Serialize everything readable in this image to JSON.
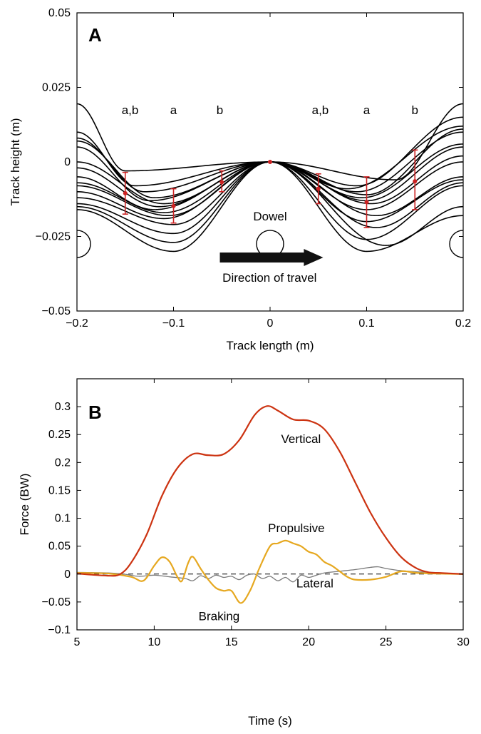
{
  "chart_data": [
    {
      "panel": "A",
      "type": "line",
      "xlabel": "Track length (m)",
      "ylabel": "Track height (m)",
      "xlim": [
        -0.2,
        0.2
      ],
      "ylim": [
        -0.05,
        0.05
      ],
      "xticks": [
        -0.2,
        -0.1,
        0,
        0.1,
        0.2
      ],
      "xtick_labels": [
        "−0.2",
        "−0.1",
        "0",
        "0.1",
        "0.2"
      ],
      "yticks": [
        -0.05,
        -0.025,
        0,
        0.025,
        0.05
      ],
      "ytick_labels": [
        "−0.05",
        "−0.025",
        "0",
        "0.025",
        "0.05"
      ],
      "grid": false,
      "line_color": "#000000",
      "marker_color": "#cc2222",
      "track_profiles": [
        {
          "left_end": 0.0195,
          "min_left_x": -0.15,
          "min_left_y": -0.003,
          "min_right_x": 0.13,
          "min_right_y": -0.006,
          "right_end": 0.0195
        },
        {
          "left_end": 0.01,
          "min_left_x": -0.14,
          "min_left_y": -0.008,
          "min_right_x": 0.09,
          "min_right_y": -0.008,
          "right_end": 0.015
        },
        {
          "left_end": 0.008,
          "min_left_x": -0.13,
          "min_left_y": -0.01,
          "min_right_x": 0.08,
          "min_right_y": -0.009,
          "right_end": 0.012
        },
        {
          "left_end": 0.007,
          "min_left_x": -0.12,
          "min_left_y": -0.012,
          "min_right_x": 0.09,
          "min_right_y": -0.01,
          "right_end": 0.01
        },
        {
          "left_end": 0.005,
          "min_left_x": -0.125,
          "min_left_y": -0.013,
          "min_right_x": 0.1,
          "min_right_y": -0.011,
          "right_end": 0.011
        },
        {
          "left_end": 0.0,
          "min_left_x": -0.11,
          "min_left_y": -0.014,
          "min_right_x": 0.095,
          "min_right_y": -0.012,
          "right_end": 0.006
        },
        {
          "left_end": -0.002,
          "min_left_x": -0.115,
          "min_left_y": -0.015,
          "min_right_x": 0.1,
          "min_right_y": -0.013,
          "right_end": 0.005
        },
        {
          "left_end": -0.005,
          "min_left_x": -0.12,
          "min_left_y": -0.016,
          "min_right_x": 0.105,
          "min_right_y": -0.014,
          "right_end": 0.002
        },
        {
          "left_end": -0.007,
          "min_left_x": -0.11,
          "min_left_y": -0.017,
          "min_right_x": 0.1,
          "min_right_y": -0.016,
          "right_end": 0.0
        },
        {
          "left_end": -0.008,
          "min_left_x": -0.105,
          "min_left_y": -0.018,
          "min_right_x": 0.11,
          "min_right_y": -0.018,
          "right_end": -0.005
        },
        {
          "left_end": -0.01,
          "min_left_x": -0.11,
          "min_left_y": -0.019,
          "min_right_x": 0.1,
          "min_right_y": -0.02,
          "right_end": -0.006
        },
        {
          "left_end": -0.012,
          "min_left_x": -0.1,
          "min_left_y": -0.021,
          "min_right_x": 0.11,
          "min_right_y": -0.022,
          "right_end": -0.007
        },
        {
          "left_end": -0.014,
          "min_left_x": -0.1,
          "min_left_y": -0.024,
          "min_right_x": 0.1,
          "min_right_y": -0.026,
          "right_end": -0.008
        },
        {
          "left_end": -0.015,
          "min_left_x": -0.1,
          "min_left_y": -0.027,
          "min_right_x": 0.12,
          "min_right_y": -0.028,
          "right_end": -0.015
        },
        {
          "left_end": -0.016,
          "min_left_x": -0.1,
          "min_left_y": -0.03,
          "min_right_x": 0.1,
          "min_right_y": -0.03,
          "right_end": -0.018
        }
      ],
      "error_bars": [
        {
          "x": -0.15,
          "mean": -0.0105,
          "lower": -0.0175,
          "upper": -0.0035
        },
        {
          "x": -0.1,
          "mean": -0.0148,
          "lower": -0.0205,
          "upper": -0.009
        },
        {
          "x": -0.05,
          "mean": -0.0068,
          "lower": -0.01,
          "upper": -0.003
        },
        {
          "x": 0.0,
          "mean": 0.0,
          "lower": 0.0,
          "upper": 0.0
        },
        {
          "x": 0.05,
          "mean": -0.009,
          "lower": -0.014,
          "upper": -0.004
        },
        {
          "x": 0.1,
          "mean": -0.0135,
          "lower": -0.022,
          "upper": -0.005
        },
        {
          "x": 0.15,
          "mean": -0.0065,
          "lower": -0.016,
          "upper": 0.004
        }
      ],
      "significance_labels": [
        {
          "x": -0.145,
          "text": "a,b"
        },
        {
          "x": -0.1,
          "text": "a"
        },
        {
          "x": -0.052,
          "text": "b"
        },
        {
          "x": 0.052,
          "text": "a,b"
        },
        {
          "x": 0.1,
          "text": "a"
        },
        {
          "x": 0.15,
          "text": "b"
        }
      ],
      "dowels": [
        {
          "x": -0.2,
          "y": -0.0275
        },
        {
          "x": 0.0,
          "y": -0.0275
        },
        {
          "x": 0.2,
          "y": -0.0275
        }
      ],
      "dowel_label": "Dowel",
      "arrow_label": "Direction of travel"
    },
    {
      "panel": "B",
      "type": "line",
      "xlabel": "Time (s)",
      "ylabel": "Force (BW)",
      "xlim": [
        5,
        30
      ],
      "ylim": [
        -0.1,
        0.35
      ],
      "xticks": [
        5,
        10,
        15,
        20,
        25,
        30
      ],
      "xtick_labels": [
        "5",
        "10",
        "15",
        "20",
        "25",
        "30"
      ],
      "yticks": [
        -0.1,
        -0.05,
        0,
        0.05,
        0.1,
        0.15,
        0.2,
        0.25,
        0.3
      ],
      "ytick_labels": [
        "−0.1",
        "−0.05",
        "0",
        "0.05",
        "0.1",
        "0.15",
        "0.2",
        "0.25",
        "0.3"
      ],
      "grid": false,
      "zero_line": true,
      "series": [
        {
          "name": "Vertical",
          "color": "#cc3311",
          "x": [
            5,
            7,
            7.8,
            8.5,
            9.5,
            10.5,
            11.5,
            12.5,
            13.5,
            14.5,
            15.5,
            16.5,
            17.3,
            18,
            19,
            20,
            21,
            22,
            23,
            24,
            25,
            26,
            27,
            27.8,
            28.5,
            30
          ],
          "y": [
            0.001,
            -0.003,
            0.0,
            0.02,
            0.07,
            0.14,
            0.19,
            0.215,
            0.213,
            0.215,
            0.24,
            0.285,
            0.301,
            0.293,
            0.277,
            0.275,
            0.26,
            0.22,
            0.165,
            0.11,
            0.065,
            0.03,
            0.01,
            0.003,
            0.002,
            0.0
          ]
        },
        {
          "name": "Propulsive",
          "color": "#e6a820",
          "x": [
            5,
            7,
            8.5,
            9.3,
            10,
            10.5,
            11,
            11.5,
            11.8,
            12.2,
            12.5,
            13,
            13.5,
            14,
            14.5,
            15,
            15.6,
            16.2,
            16.8,
            17.5,
            18,
            18.5,
            19,
            19.5,
            20,
            20.5,
            21,
            21.5,
            22,
            22.5,
            23,
            24,
            25,
            26,
            27,
            28,
            30
          ],
          "y": [
            0.002,
            0.001,
            -0.005,
            -0.012,
            0.015,
            0.03,
            0.022,
            -0.005,
            -0.012,
            0.02,
            0.031,
            0.01,
            -0.01,
            -0.025,
            -0.03,
            -0.03,
            -0.052,
            -0.03,
            0.01,
            0.05,
            0.055,
            0.06,
            0.055,
            0.05,
            0.04,
            0.035,
            0.022,
            0.015,
            0.005,
            -0.005,
            -0.01,
            -0.01,
            -0.005,
            0.005,
            0.002,
            0.001,
            0.0
          ]
        },
        {
          "name": "Lateral",
          "color": "#7a7a7a",
          "x": [
            5,
            7,
            8,
            9,
            10,
            11,
            12,
            12.5,
            13,
            13.5,
            14,
            14.5,
            15,
            15.5,
            16,
            16.5,
            17,
            17.5,
            18,
            18.5,
            19,
            19.5,
            20,
            20.5,
            21,
            22,
            23,
            24,
            24.5,
            25,
            26,
            27,
            28,
            30
          ],
          "y": [
            0.003,
            0.002,
            0.0,
            -0.004,
            -0.002,
            -0.005,
            -0.008,
            -0.012,
            -0.003,
            -0.008,
            -0.002,
            -0.006,
            -0.004,
            -0.01,
            -0.002,
            0.0,
            -0.008,
            -0.004,
            -0.012,
            -0.006,
            -0.014,
            -0.002,
            -0.006,
            -0.002,
            0.002,
            0.005,
            0.008,
            0.012,
            0.013,
            0.01,
            0.006,
            0.004,
            0.003,
            0.0
          ]
        }
      ],
      "annotations": [
        {
          "text": "Vertical",
          "x": 19.5,
          "y": 0.235
        },
        {
          "text": "Propulsive",
          "x": 19.2,
          "y": 0.075
        },
        {
          "text": "Lateral",
          "x": 20.4,
          "y": -0.024
        },
        {
          "text": "Braking",
          "x": 14.2,
          "y": -0.083
        }
      ]
    }
  ]
}
